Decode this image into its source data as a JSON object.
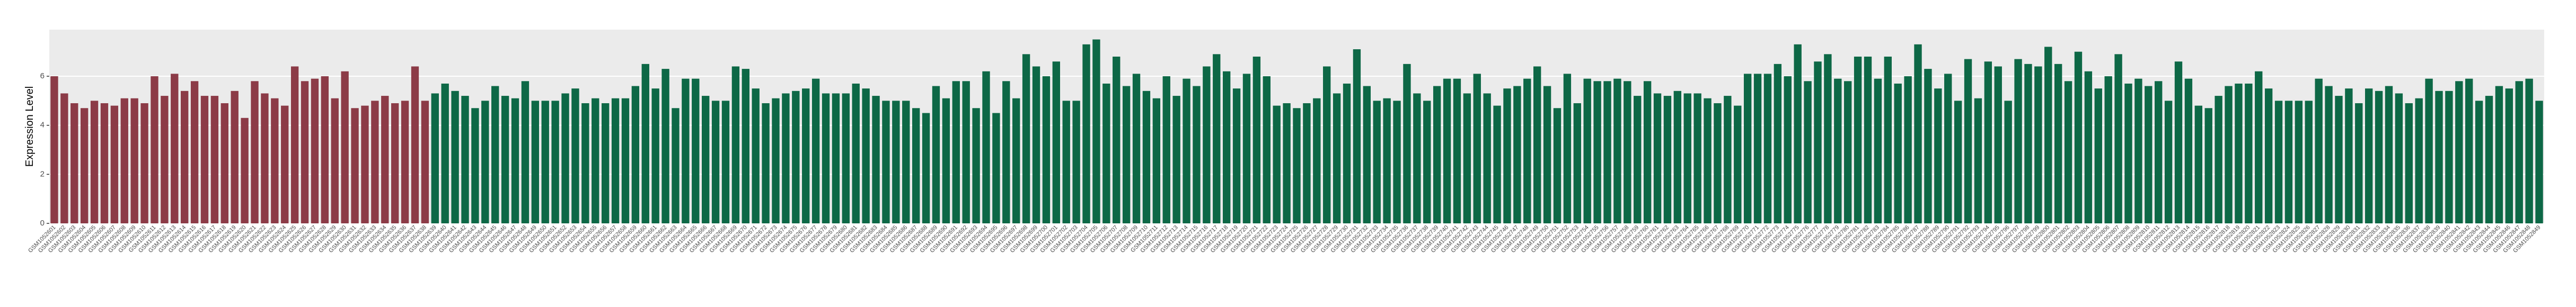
{
  "chart_data": {
    "type": "bar",
    "y_label": "Expression Level",
    "ylim": [
      0,
      7.9
    ],
    "yticks": [
      0,
      2,
      4,
      6
    ],
    "grid": true,
    "series": [
      {
        "color": "#8c3b47",
        "categories": [
          "GSM1052601",
          "GSM1052602",
          "GSM1052603",
          "GSM1052604",
          "GSM1052605",
          "GSM1052606",
          "GSM1052607",
          "GSM1052608",
          "GSM1052609",
          "GSM1052610",
          "GSM1052611",
          "GSM1052612",
          "GSM1052613",
          "GSM1052614",
          "GSM1052615",
          "GSM1052616",
          "GSM1052617",
          "GSM1052618",
          "GSM1052619",
          "GSM1052620",
          "GSM1052621",
          "GSM1052622",
          "GSM1052623",
          "GSM1052624",
          "GSM1052625",
          "GSM1052626",
          "GSM1052627",
          "GSM1052628",
          "GSM1052629",
          "GSM1052630",
          "GSM1052631",
          "GSM1052632",
          "GSM1052633",
          "GSM1052634",
          "GSM1052635",
          "GSM1052636",
          "GSM1052637",
          "GSM1052638"
        ],
        "values": [
          6.0,
          5.3,
          4.9,
          4.7,
          5.0,
          4.9,
          4.8,
          5.1,
          5.1,
          4.9,
          6.0,
          5.2,
          6.1,
          5.4,
          5.8,
          5.2,
          5.2,
          4.9,
          5.4,
          4.3,
          5.8,
          5.3,
          5.1,
          4.8,
          6.4,
          5.8,
          5.9,
          6.0,
          5.1,
          6.2,
          4.7,
          4.8,
          5.0,
          5.2,
          4.9,
          5.0,
          6.4,
          5.0
        ]
      },
      {
        "color": "#0d6846",
        "categories": [
          "GSM1052639",
          "GSM1052640",
          "GSM1052641",
          "GSM1052642",
          "GSM1052643",
          "GSM1052644",
          "GSM1052645",
          "GSM1052646",
          "GSM1052647",
          "GSM1052648",
          "GSM1052649",
          "GSM1052650",
          "GSM1052651",
          "GSM1052652",
          "GSM1052653",
          "GSM1052654",
          "GSM1052655",
          "GSM1052656",
          "GSM1052657",
          "GSM1052658",
          "GSM1052659",
          "GSM1052660",
          "GSM1052661",
          "GSM1052662",
          "GSM1052663",
          "GSM1052664",
          "GSM1052665",
          "GSM1052666",
          "GSM1052667",
          "GSM1052668",
          "GSM1052669",
          "GSM1052670",
          "GSM1052671",
          "GSM1052672",
          "GSM1052673",
          "GSM1052674",
          "GSM1052675",
          "GSM1052676",
          "GSM1052677",
          "GSM1052678",
          "GSM1052679",
          "GSM1052680",
          "GSM1052681",
          "GSM1052682",
          "GSM1052683",
          "GSM1052684",
          "GSM1052685",
          "GSM1052686",
          "GSM1052687",
          "GSM1052688",
          "GSM1052689",
          "GSM1052690",
          "GSM1052691",
          "GSM1052692",
          "GSM1052693",
          "GSM1052694",
          "GSM1052695",
          "GSM1052696",
          "GSM1052697",
          "GSM1052698",
          "GSM1052699",
          "GSM1052700",
          "GSM1052701",
          "GSM1052702",
          "GSM1052703",
          "GSM1052704",
          "GSM1052705",
          "GSM1052706",
          "GSM1052707",
          "GSM1052708",
          "GSM1052709",
          "GSM1052710",
          "GSM1052711",
          "GSM1052712",
          "GSM1052713",
          "GSM1052714",
          "GSM1052715",
          "GSM1052716",
          "GSM1052717",
          "GSM1052718",
          "GSM1052719",
          "GSM1052720",
          "GSM1052721",
          "GSM1052722",
          "GSM1052723",
          "GSM1052724",
          "GSM1052725",
          "GSM1052726",
          "GSM1052727",
          "GSM1052728",
          "GSM1052729",
          "GSM1052730",
          "GSM1052731",
          "GSM1052732",
          "GSM1052733",
          "GSM1052734",
          "GSM1052735",
          "GSM1052736",
          "GSM1052737",
          "GSM1052738",
          "GSM1052739",
          "GSM1052740",
          "GSM1052741",
          "GSM1052742",
          "GSM1052743",
          "GSM1052744",
          "GSM1052745",
          "GSM1052746",
          "GSM1052747",
          "GSM1052748",
          "GSM1052749",
          "GSM1052750",
          "GSM1052751",
          "GSM1052752",
          "GSM1052753",
          "GSM1052754",
          "GSM1052755",
          "GSM1052756",
          "GSM1052757",
          "GSM1052758",
          "GSM1052759",
          "GSM1052760",
          "GSM1052761",
          "GSM1052762",
          "GSM1052763",
          "GSM1052764",
          "GSM1052765",
          "GSM1052766",
          "GSM1052767",
          "GSM1052768",
          "GSM1052769",
          "GSM1052770",
          "GSM1052771",
          "GSM1052772",
          "GSM1052773",
          "GSM1052774",
          "GSM1052775",
          "GSM1052776",
          "GSM1052777",
          "GSM1052778",
          "GSM1052779",
          "GSM1052780",
          "GSM1052781",
          "GSM1052782",
          "GSM1052783",
          "GSM1052784",
          "GSM1052785",
          "GSM1052786",
          "GSM1052787",
          "GSM1052788",
          "GSM1052789",
          "GSM1052790",
          "GSM1052791",
          "GSM1052792",
          "GSM1052793",
          "GSM1052794",
          "GSM1052795",
          "GSM1052796",
          "GSM1052797",
          "GSM1052798",
          "GSM1052799",
          "GSM1052800",
          "GSM1052801",
          "GSM1052802",
          "GSM1052803",
          "GSM1052804",
          "GSM1052805",
          "GSM1052806",
          "GSM1052807",
          "GSM1052808",
          "GSM1052809",
          "GSM1052810",
          "GSM1052811",
          "GSM1052812",
          "GSM1052813",
          "GSM1052814",
          "GSM1052815",
          "GSM1052816",
          "GSM1052817",
          "GSM1052818",
          "GSM1052819",
          "GSM1052820",
          "GSM1052821",
          "GSM1052822",
          "GSM1052823",
          "GSM1052824",
          "GSM1052825",
          "GSM1052826",
          "GSM1052827",
          "GSM1052828",
          "GSM1052829",
          "GSM1052830",
          "GSM1052831",
          "GSM1052832",
          "GSM1052833",
          "GSM1052834",
          "GSM1052835",
          "GSM1052836",
          "GSM1052837",
          "GSM1052838",
          "GSM1052839",
          "GSM1052840",
          "GSM1052841",
          "GSM1052842",
          "GSM1052843",
          "GSM1052844",
          "GSM1052845",
          "GSM1052846",
          "GSM1052847",
          "GSM1052848",
          "GSM1052849"
        ],
        "values": [
          5.3,
          5.7,
          5.4,
          5.2,
          4.7,
          5.0,
          5.6,
          5.2,
          5.1,
          5.8,
          5.0,
          5.0,
          5.0,
          5.3,
          5.5,
          4.9,
          5.1,
          4.9,
          5.1,
          5.1,
          5.6,
          6.5,
          5.5,
          6.3,
          4.7,
          5.9,
          5.9,
          5.2,
          5.0,
          5.0,
          6.4,
          6.3,
          5.5,
          4.9,
          5.1,
          5.3,
          5.4,
          5.5,
          5.9,
          5.3,
          5.3,
          5.3,
          5.7,
          5.5,
          5.2,
          5.0,
          5.0,
          5.0,
          4.7,
          4.5,
          5.6,
          5.1,
          5.8,
          5.8,
          4.7,
          6.2,
          4.5,
          5.8,
          5.1,
          6.9,
          6.4,
          6.0,
          6.6,
          5.0,
          5.0,
          7.3,
          7.5,
          5.7,
          6.8,
          5.6,
          6.1,
          5.4,
          5.1,
          6.0,
          5.2,
          5.9,
          5.6,
          6.4,
          6.9,
          6.2,
          5.5,
          6.1,
          6.8,
          6.0,
          4.8,
          4.9,
          4.7,
          4.9,
          5.1,
          6.4,
          5.3,
          5.7,
          7.1,
          5.6,
          5.0,
          5.1,
          5.0,
          6.5,
          5.3,
          5.0,
          5.6,
          5.9,
          5.9,
          5.3,
          6.1,
          5.3,
          4.8,
          5.5,
          5.6,
          5.9,
          6.4,
          5.6,
          4.7,
          6.1,
          4.9,
          5.9,
          5.8,
          5.8,
          5.9,
          5.8,
          5.2,
          5.8,
          5.3,
          5.2,
          5.4,
          5.3,
          5.3,
          5.1,
          4.9,
          5.2,
          4.8,
          6.1,
          6.1,
          6.1,
          6.5,
          6.0,
          7.3,
          5.8,
          6.6,
          6.9,
          5.9,
          5.8,
          6.8,
          6.8,
          5.9,
          6.8,
          5.7,
          6.0,
          7.3,
          6.3,
          5.5,
          6.1,
          5.0,
          6.7,
          5.1,
          6.6,
          6.4,
          5.0,
          6.7,
          6.5,
          6.4,
          7.2,
          6.5,
          5.8,
          7.0,
          6.2,
          5.5,
          6.0,
          6.9,
          5.7,
          5.9,
          5.6,
          5.8,
          5.0,
          6.6,
          5.9,
          4.8,
          4.7,
          5.2,
          5.6,
          5.7,
          5.7,
          6.2,
          5.5,
          5.0,
          5.0,
          5.0,
          5.0,
          5.9,
          5.6,
          5.2,
          5.5,
          4.9,
          5.5,
          5.4,
          5.6,
          5.3,
          4.9,
          5.1,
          5.9,
          5.4,
          5.4,
          5.8,
          5.9,
          5.0,
          5.2,
          5.6,
          5.5,
          5.8,
          5.9,
          5.0
        ]
      }
    ]
  }
}
